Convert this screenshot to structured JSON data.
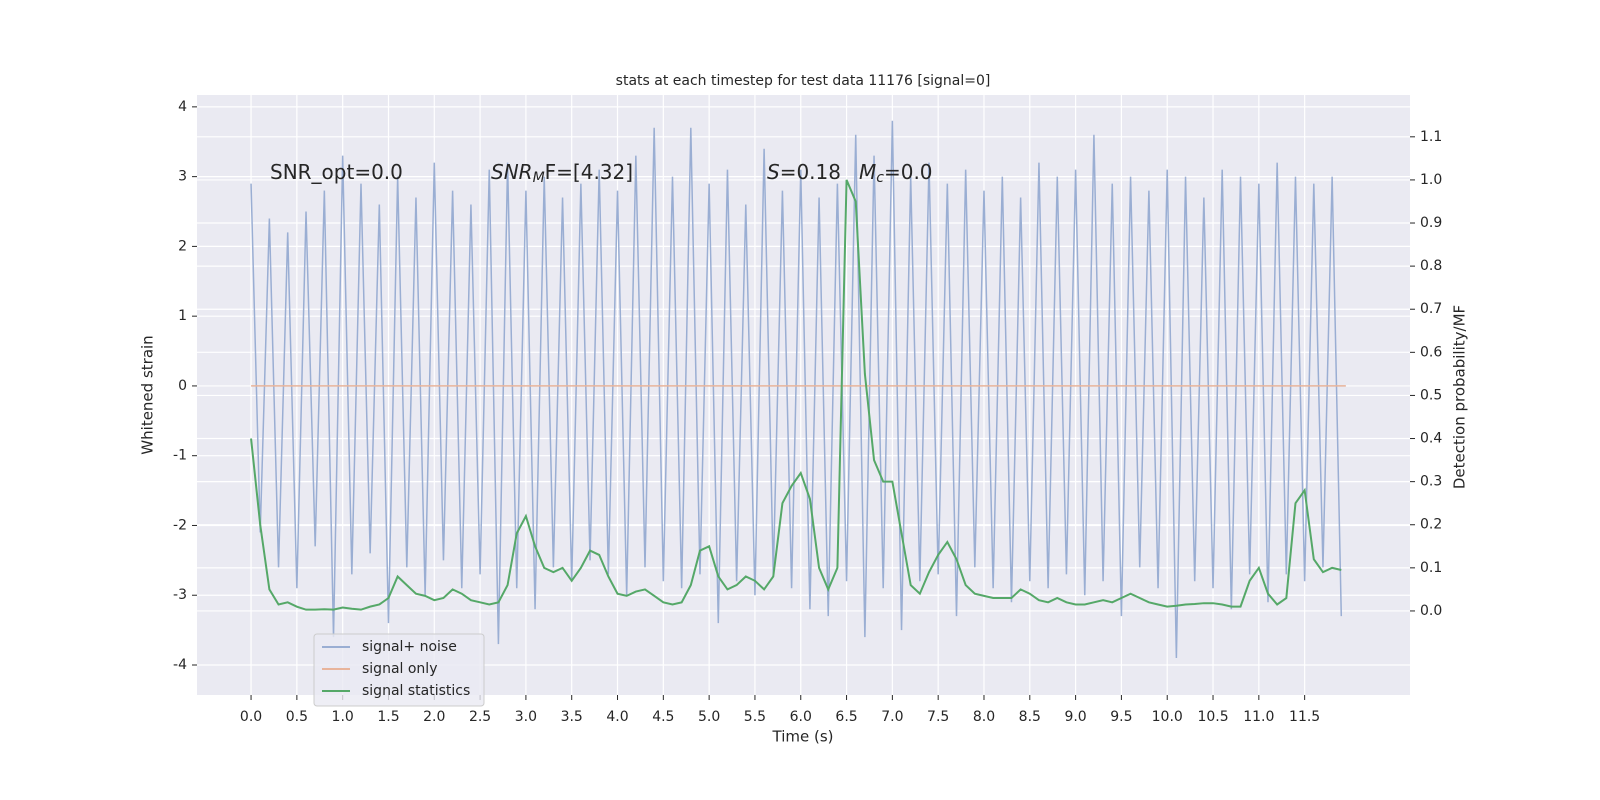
{
  "chart_data": {
    "type": "line",
    "title": "stats at each timestep for test data 11176 [signal=0]",
    "xlabel": "Time (s)",
    "ylabel": "Whitened strain",
    "y2label": "Detection probability/MF",
    "annotations": [
      [
        "SNR_opt=0.0"
      ],
      [
        "SNR",
        "M",
        "F=[4.32]"
      ],
      [
        "S",
        "=0.18"
      ],
      [
        "M",
        "c",
        "=0.0"
      ]
    ],
    "xlim": [
      -0.59,
      12.65
    ],
    "ylim": [
      -4.43,
      4.17
    ],
    "y2lim": [
      -0.195,
      1.197
    ],
    "xticks": [
      {
        "value": 0,
        "label": "0.0"
      },
      0.5,
      {
        "value": 1,
        "label": "1.0"
      },
      1.5,
      {
        "value": 2,
        "label": "2.0"
      },
      2.5,
      {
        "value": 3,
        "label": "3.0"
      },
      3.5,
      {
        "value": 4,
        "label": "4.0"
      },
      4.5,
      {
        "value": 5,
        "label": "5.0"
      },
      5.5,
      {
        "value": 6,
        "label": "6.0"
      },
      6.5,
      {
        "value": 7,
        "label": "7.0"
      },
      7.5,
      {
        "value": 8,
        "label": "8.0"
      },
      8.5,
      {
        "value": 9,
        "label": "9.0"
      },
      9.5,
      {
        "value": 10,
        "label": "10.0"
      },
      10.5,
      {
        "value": 11,
        "label": "11.0"
      },
      11.5
    ],
    "yticks": [
      -4,
      -3,
      -2,
      -1,
      0,
      1,
      2,
      3,
      4
    ],
    "y2ticks": [
      {
        "value": 0,
        "label": "0.0"
      },
      0.1,
      0.2,
      0.3,
      0.4,
      0.5,
      0.6,
      0.7,
      0.8,
      0.9,
      {
        "value": 1,
        "label": "1.0"
      },
      1.1
    ],
    "grid": true,
    "legend": "lower left",
    "x": [
      0,
      0.1,
      0.2,
      0.3,
      0.4,
      0.5,
      0.6,
      0.7,
      0.8,
      0.9,
      1,
      1.1,
      1.2,
      1.3,
      1.4,
      1.5,
      1.6,
      1.7,
      1.8,
      1.9,
      2,
      2.1,
      2.2,
      2.3,
      2.4,
      2.5,
      2.6,
      2.7,
      2.8,
      2.9,
      3,
      3.1,
      3.2,
      3.3,
      3.4,
      3.5,
      3.6,
      3.7,
      3.8,
      3.9,
      4,
      4.1,
      4.2,
      4.3,
      4.4,
      4.5,
      4.6,
      4.7,
      4.8,
      4.9,
      5,
      5.1,
      5.2,
      5.3,
      5.4,
      5.5,
      5.6,
      5.7,
      5.8,
      5.9,
      6,
      6.1,
      6.2,
      6.3,
      6.4,
      6.5,
      6.6,
      6.7,
      6.8,
      6.9,
      7,
      7.1,
      7.2,
      7.3,
      7.4,
      7.5,
      7.6,
      7.7,
      7.8,
      7.9,
      8,
      8.1,
      8.2,
      8.3,
      8.4,
      8.5,
      8.6,
      8.7,
      8.8,
      8.9,
      9,
      9.1,
      9.2,
      9.3,
      9.4,
      9.5,
      9.6,
      9.7,
      9.8,
      9.9,
      10,
      10.1,
      10.2,
      10.3,
      10.4,
      10.5,
      10.6,
      10.7,
      10.8,
      10.9,
      11,
      11.1,
      11.2,
      11.3,
      11.4,
      11.5,
      11.6,
      11.7,
      11.8,
      11.9
    ],
    "series": [
      {
        "name": "signal+ noise",
        "color": "#9aaed3",
        "values": [
          2.9,
          -2.1,
          2.4,
          -2.6,
          2.2,
          -2.9,
          2.5,
          -2.3,
          2.8,
          -3.6,
          3.3,
          -2.7,
          2.9,
          -2.4,
          2.6,
          -3.4,
          3.0,
          -2.6,
          2.7,
          -3.0,
          3.2,
          -2.5,
          2.8,
          -2.9,
          2.6,
          -2.7,
          3.1,
          -3.7,
          3.2,
          -2.9,
          2.8,
          -3.2,
          3.0,
          -2.6,
          2.7,
          -2.8,
          2.9,
          -2.5,
          3.1,
          -2.7,
          2.8,
          -3.0,
          3.3,
          -2.6,
          3.7,
          -2.8,
          3.0,
          -2.9,
          3.7,
          -2.7,
          2.9,
          -3.4,
          3.1,
          -2.8,
          2.6,
          -3.0,
          3.4,
          -2.7,
          2.8,
          -2.9,
          3.1,
          -3.2,
          2.7,
          -3.3,
          2.9,
          -2.8,
          3.6,
          -3.6,
          3.3,
          -2.9,
          3.8,
          -3.5,
          3.0,
          -2.8,
          3.2,
          -2.7,
          2.9,
          -3.3,
          3.1,
          -2.6,
          2.8,
          -2.9,
          3.0,
          -3.1,
          2.7,
          -2.8,
          3.2,
          -2.9,
          3.0,
          -2.7,
          3.1,
          -3.0,
          3.6,
          -2.8,
          2.9,
          -3.3,
          3.0,
          -2.6,
          2.8,
          -2.9,
          3.1,
          -3.9,
          3.0,
          -2.8,
          2.7,
          -2.9,
          3.1,
          -3.2,
          3.0,
          -2.7,
          2.9,
          -3.1,
          3.2,
          -2.7,
          3.0,
          -2.8,
          2.9,
          -2.6,
          3.0,
          -3.3
        ]
      },
      {
        "name": "signal only",
        "color": "#e8b49b",
        "x": [
          0,
          11.95
        ],
        "values": [
          0,
          0
        ]
      },
      {
        "name": "signal statistics",
        "color": "#55a868",
        "axis": "y2",
        "values": [
          0.4,
          0.2,
          0.05,
          0.015,
          0.02,
          0.01,
          0.003,
          0.003,
          0.004,
          0.003,
          0.008,
          0.005,
          0.003,
          0.01,
          0.015,
          0.03,
          0.08,
          0.06,
          0.04,
          0.035,
          0.025,
          0.03,
          0.05,
          0.04,
          0.025,
          0.02,
          0.015,
          0.02,
          0.06,
          0.18,
          0.22,
          0.15,
          0.1,
          0.09,
          0.1,
          0.07,
          0.1,
          0.14,
          0.13,
          0.08,
          0.04,
          0.035,
          0.045,
          0.05,
          0.035,
          0.02,
          0.015,
          0.02,
          0.06,
          0.14,
          0.15,
          0.08,
          0.05,
          0.06,
          0.08,
          0.07,
          0.05,
          0.08,
          0.25,
          0.29,
          0.32,
          0.26,
          0.1,
          0.05,
          0.1,
          1.0,
          0.95,
          0.55,
          0.35,
          0.3,
          0.3,
          0.18,
          0.06,
          0.04,
          0.09,
          0.13,
          0.16,
          0.12,
          0.06,
          0.04,
          0.035,
          0.03,
          0.03,
          0.03,
          0.05,
          0.04,
          0.025,
          0.02,
          0.03,
          0.02,
          0.015,
          0.015,
          0.02,
          0.025,
          0.02,
          0.03,
          0.04,
          0.03,
          0.02,
          0.015,
          0.01,
          0.012,
          0.015,
          0.016,
          0.018,
          0.018,
          0.015,
          0.01,
          0.01,
          0.07,
          0.1,
          0.04,
          0.015,
          0.03,
          0.25,
          0.28,
          0.12,
          0.09,
          0.1,
          0.095
        ]
      }
    ]
  }
}
